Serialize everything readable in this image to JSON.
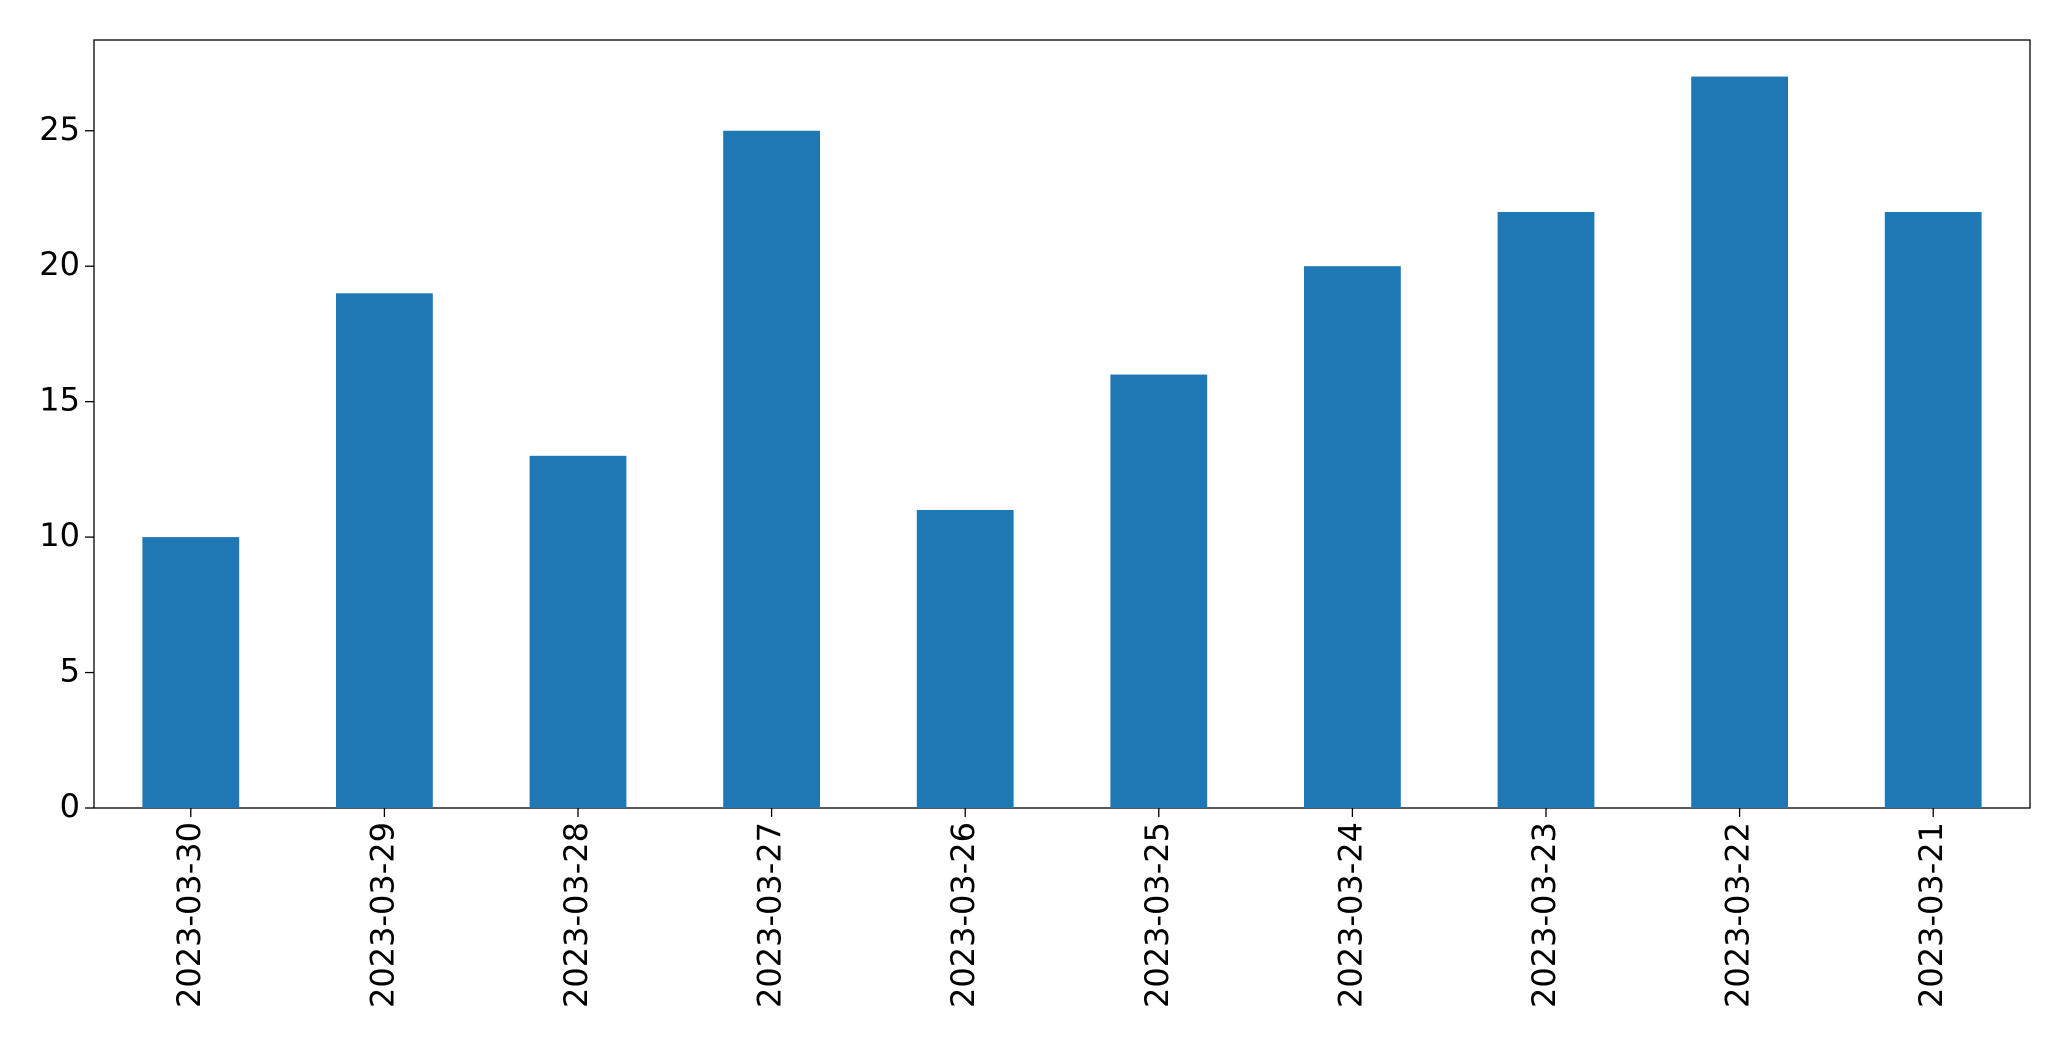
{
  "chart_data": {
    "type": "bar",
    "categories": [
      "2023-03-30",
      "2023-03-29",
      "2023-03-28",
      "2023-03-27",
      "2023-03-26",
      "2023-03-25",
      "2023-03-24",
      "2023-03-23",
      "2023-03-22",
      "2023-03-21"
    ],
    "values": [
      10,
      19,
      13,
      25,
      11,
      16,
      20,
      22,
      27,
      22
    ],
    "color": "#1f77b4",
    "ylim": [
      0,
      28.35
    ],
    "yticks": [
      0,
      5,
      10,
      15,
      20,
      25
    ],
    "grid": false
  }
}
